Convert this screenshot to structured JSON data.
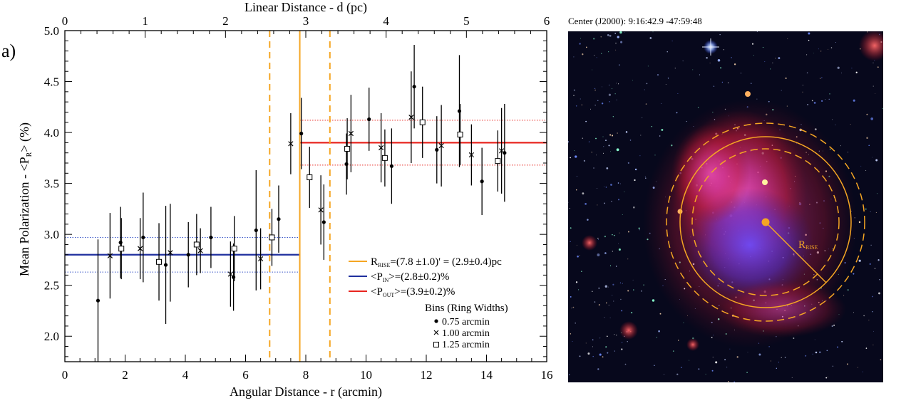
{
  "panel_label": "a)",
  "chart_data": {
    "type": "scatter",
    "xlabel": "Angular Distance - r (arcmin)",
    "ylabel": "Mean Polarization - <P",
    "ylabel_sub": "R",
    "ylabel_tail": "> (%)",
    "top_xlabel": "Linear Distance - d (pc)",
    "xlim": [
      0,
      16
    ],
    "ylim": [
      1.75,
      5.0
    ],
    "top_xlim": [
      0,
      6
    ],
    "x_ticks": [
      "0",
      "2",
      "4",
      "6",
      "8",
      "10",
      "12",
      "14",
      "16"
    ],
    "y_ticks": [
      "2.0",
      "2.5",
      "3.0",
      "3.5",
      "4.0",
      "4.5",
      "5.0"
    ],
    "top_x_ticks": [
      "0",
      "1",
      "2",
      "3",
      "4",
      "5",
      "6"
    ],
    "r_rise": 7.8,
    "r_rise_err": 1.0,
    "p_in": 2.8,
    "p_in_err": 0.17,
    "p_out": 3.9,
    "p_out_err": 0.22,
    "series": [
      {
        "name": "0.75 arcmin",
        "marker": "dot",
        "points": [
          {
            "x": 1.1,
            "y": 2.35,
            "err": 0.6
          },
          {
            "x": 1.85,
            "y": 2.92,
            "err": 0.35
          },
          {
            "x": 2.6,
            "y": 2.97,
            "err": 0.44
          },
          {
            "x": 3.35,
            "y": 2.7,
            "err": 0.58
          },
          {
            "x": 4.1,
            "y": 2.8,
            "err": 0.32
          },
          {
            "x": 4.85,
            "y": 2.97,
            "err": 0.3
          },
          {
            "x": 5.6,
            "y": 2.58,
            "err": 0.33
          },
          {
            "x": 6.35,
            "y": 3.04,
            "err": 0.59
          },
          {
            "x": 7.1,
            "y": 3.15,
            "err": 0.33
          },
          {
            "x": 7.85,
            "y": 3.99,
            "err": 0.35
          },
          {
            "x": 8.6,
            "y": 3.12,
            "err": 0.37
          },
          {
            "x": 9.35,
            "y": 3.69,
            "err": 0.3
          },
          {
            "x": 10.1,
            "y": 4.13,
            "err": 0.31
          },
          {
            "x": 10.85,
            "y": 3.67,
            "err": 0.37
          },
          {
            "x": 11.6,
            "y": 4.45,
            "err": 0.41
          },
          {
            "x": 12.35,
            "y": 3.83,
            "err": 0.33
          },
          {
            "x": 13.1,
            "y": 4.21,
            "err": 0.55
          },
          {
            "x": 13.85,
            "y": 3.52,
            "err": 0.33
          },
          {
            "x": 14.6,
            "y": 3.8,
            "err": 0.48
          }
        ]
      },
      {
        "name": "1.00 arcmin",
        "marker": "cross",
        "points": [
          {
            "x": 1.5,
            "y": 2.79,
            "err": 0.42
          },
          {
            "x": 2.5,
            "y": 2.86,
            "err": 0.3
          },
          {
            "x": 3.5,
            "y": 2.82,
            "err": 0.48
          },
          {
            "x": 4.5,
            "y": 2.84,
            "err": 0.22
          },
          {
            "x": 5.5,
            "y": 2.61,
            "err": 0.32
          },
          {
            "x": 6.5,
            "y": 2.76,
            "err": 0.3
          },
          {
            "x": 7.5,
            "y": 3.89,
            "err": 0.3
          },
          {
            "x": 8.5,
            "y": 3.24,
            "err": 0.34
          },
          {
            "x": 9.5,
            "y": 3.99,
            "err": 0.38
          },
          {
            "x": 10.5,
            "y": 3.85,
            "err": 0.34
          },
          {
            "x": 11.5,
            "y": 4.15,
            "err": 0.45
          },
          {
            "x": 12.5,
            "y": 3.87,
            "err": 0.4
          },
          {
            "x": 13.5,
            "y": 3.78,
            "err": 0.3
          },
          {
            "x": 14.5,
            "y": 3.82,
            "err": 0.42
          }
        ]
      },
      {
        "name": "1.25 arcmin",
        "marker": "square",
        "points": [
          {
            "x": 1.875,
            "y": 2.86,
            "err": 0.3
          },
          {
            "x": 3.125,
            "y": 2.73,
            "err": 0.38
          },
          {
            "x": 4.375,
            "y": 2.9,
            "err": 0.3
          },
          {
            "x": 5.625,
            "y": 2.86,
            "err": 0.32
          },
          {
            "x": 6.875,
            "y": 2.97,
            "err": 0.28
          },
          {
            "x": 8.125,
            "y": 3.56,
            "err": 0.3
          },
          {
            "x": 9.375,
            "y": 3.84,
            "err": 0.3
          },
          {
            "x": 10.625,
            "y": 3.75,
            "err": 0.28
          },
          {
            "x": 11.875,
            "y": 4.1,
            "err": 0.35
          },
          {
            "x": 13.125,
            "y": 3.98,
            "err": 0.3
          },
          {
            "x": 14.375,
            "y": 3.72,
            "err": 0.3
          }
        ]
      }
    ],
    "legend": {
      "rise": {
        "prefix": "R",
        "sub": "RISE",
        "text": "=(7.8 ±1.0)' = (2.9±0.4)pc",
        "color": "#f5a623"
      },
      "p_in": {
        "prefix": "<P",
        "sub": "IN",
        "text": ">=(2.8±0.2)%",
        "color": "#1f2f9e"
      },
      "p_out": {
        "prefix": "<P",
        "sub": "OUT",
        "text": ">=(3.9±0.2)%",
        "color": "#e8251f"
      },
      "bins_title": "Bins (Ring Widths)",
      "bins": [
        "0.75 arcmin",
        "1.00 arcmin",
        "1.25 arcmin"
      ]
    }
  },
  "image_panel": {
    "caption": "Center (J2000): 9:16:42.9 -47:59:48",
    "rrise_label": "R",
    "rrise_sub": "RISE"
  },
  "colors": {
    "rise": "#f5a623",
    "p_in": "#1f2f9e",
    "p_out": "#e8251f",
    "in_dotted": "#3a56c8",
    "out_dotted": "#e8251f"
  }
}
